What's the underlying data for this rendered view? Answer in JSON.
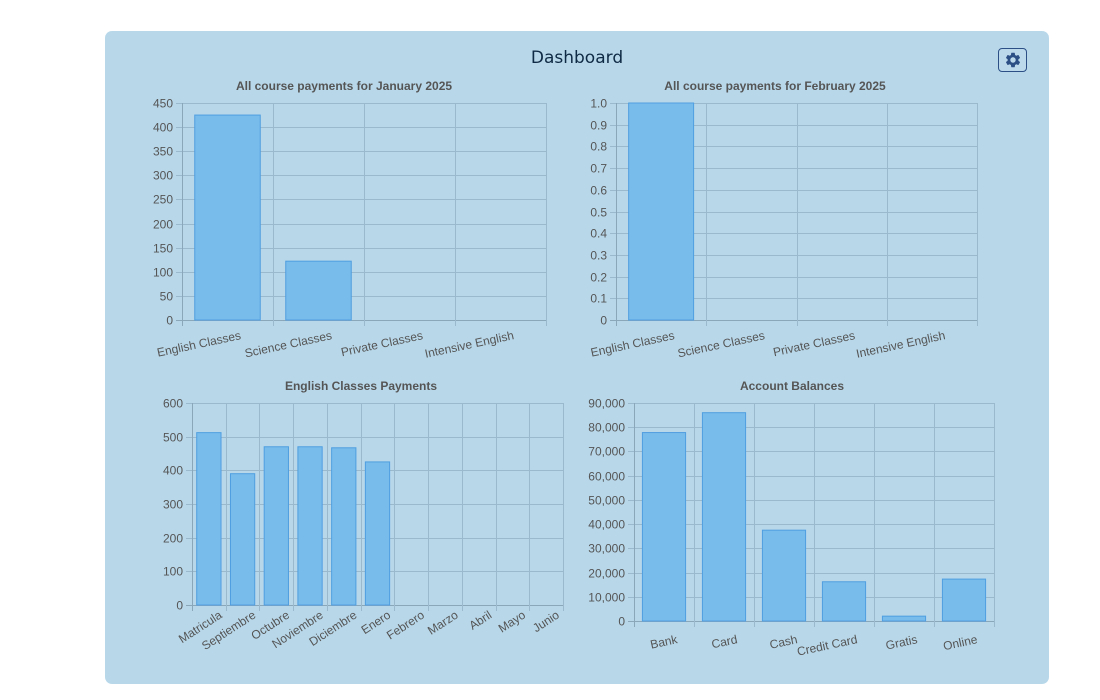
{
  "dashboard": {
    "title": "Dashboard"
  },
  "settings": {
    "icon": "gear-icon",
    "color": "#2c4f86"
  },
  "chart_data": [
    {
      "type": "bar",
      "title": "All course payments for January 2025",
      "categories": [
        "English Classes",
        "Science Classes",
        "Private Classes",
        "Intensive English"
      ],
      "values": [
        425,
        122,
        0,
        0
      ],
      "ylim": [
        0,
        450
      ],
      "ystep": 50,
      "yticks": [
        "0",
        "50",
        "100",
        "150",
        "200",
        "250",
        "300",
        "350",
        "400",
        "450"
      ],
      "grid": true,
      "legend": "none",
      "bar_color": "#78bceb"
    },
    {
      "type": "bar",
      "title": "All course payments for February 2025",
      "categories": [
        "English Classes",
        "Science Classes",
        "Private Classes",
        "Intensive English"
      ],
      "values": [
        1,
        0,
        0,
        0
      ],
      "ylim": [
        0,
        1
      ],
      "ystep": 0.1,
      "yticks": [
        "0",
        "0.1",
        "0.2",
        "0.3",
        "0.4",
        "0.5",
        "0.6",
        "0.7",
        "0.8",
        "0.9",
        "1.0"
      ],
      "grid": true,
      "legend": "none",
      "bar_color": "#78bceb"
    },
    {
      "type": "bar",
      "title": "English Classes Payments",
      "categories": [
        "Matricula",
        "Septiembre",
        "Octubre",
        "Noviembre",
        "Diciembre",
        "Enero",
        "Febrero",
        "Marzo",
        "Abril",
        "Mayo",
        "Junio"
      ],
      "values": [
        512,
        390,
        470,
        470,
        467,
        425,
        0,
        0,
        0,
        0,
        0
      ],
      "ylim": [
        0,
        600
      ],
      "ystep": 100,
      "yticks": [
        "0",
        "100",
        "200",
        "300",
        "400",
        "500",
        "600"
      ],
      "grid": true,
      "legend": "none",
      "bar_color": "#78bceb"
    },
    {
      "type": "bar",
      "title": "Account Balances",
      "categories": [
        "Bank",
        "Card",
        "Cash",
        "Credit Card",
        "Gratis",
        "Online"
      ],
      "values": [
        77800,
        86000,
        37500,
        16200,
        2000,
        17300
      ],
      "ylim": [
        0,
        90000
      ],
      "ystep": 10000,
      "yticks": [
        "0",
        "10,000",
        "20,000",
        "30,000",
        "40,000",
        "50,000",
        "60,000",
        "70,000",
        "80,000",
        "90,000"
      ],
      "grid": true,
      "legend": "none",
      "bar_color": "#78bceb"
    }
  ]
}
